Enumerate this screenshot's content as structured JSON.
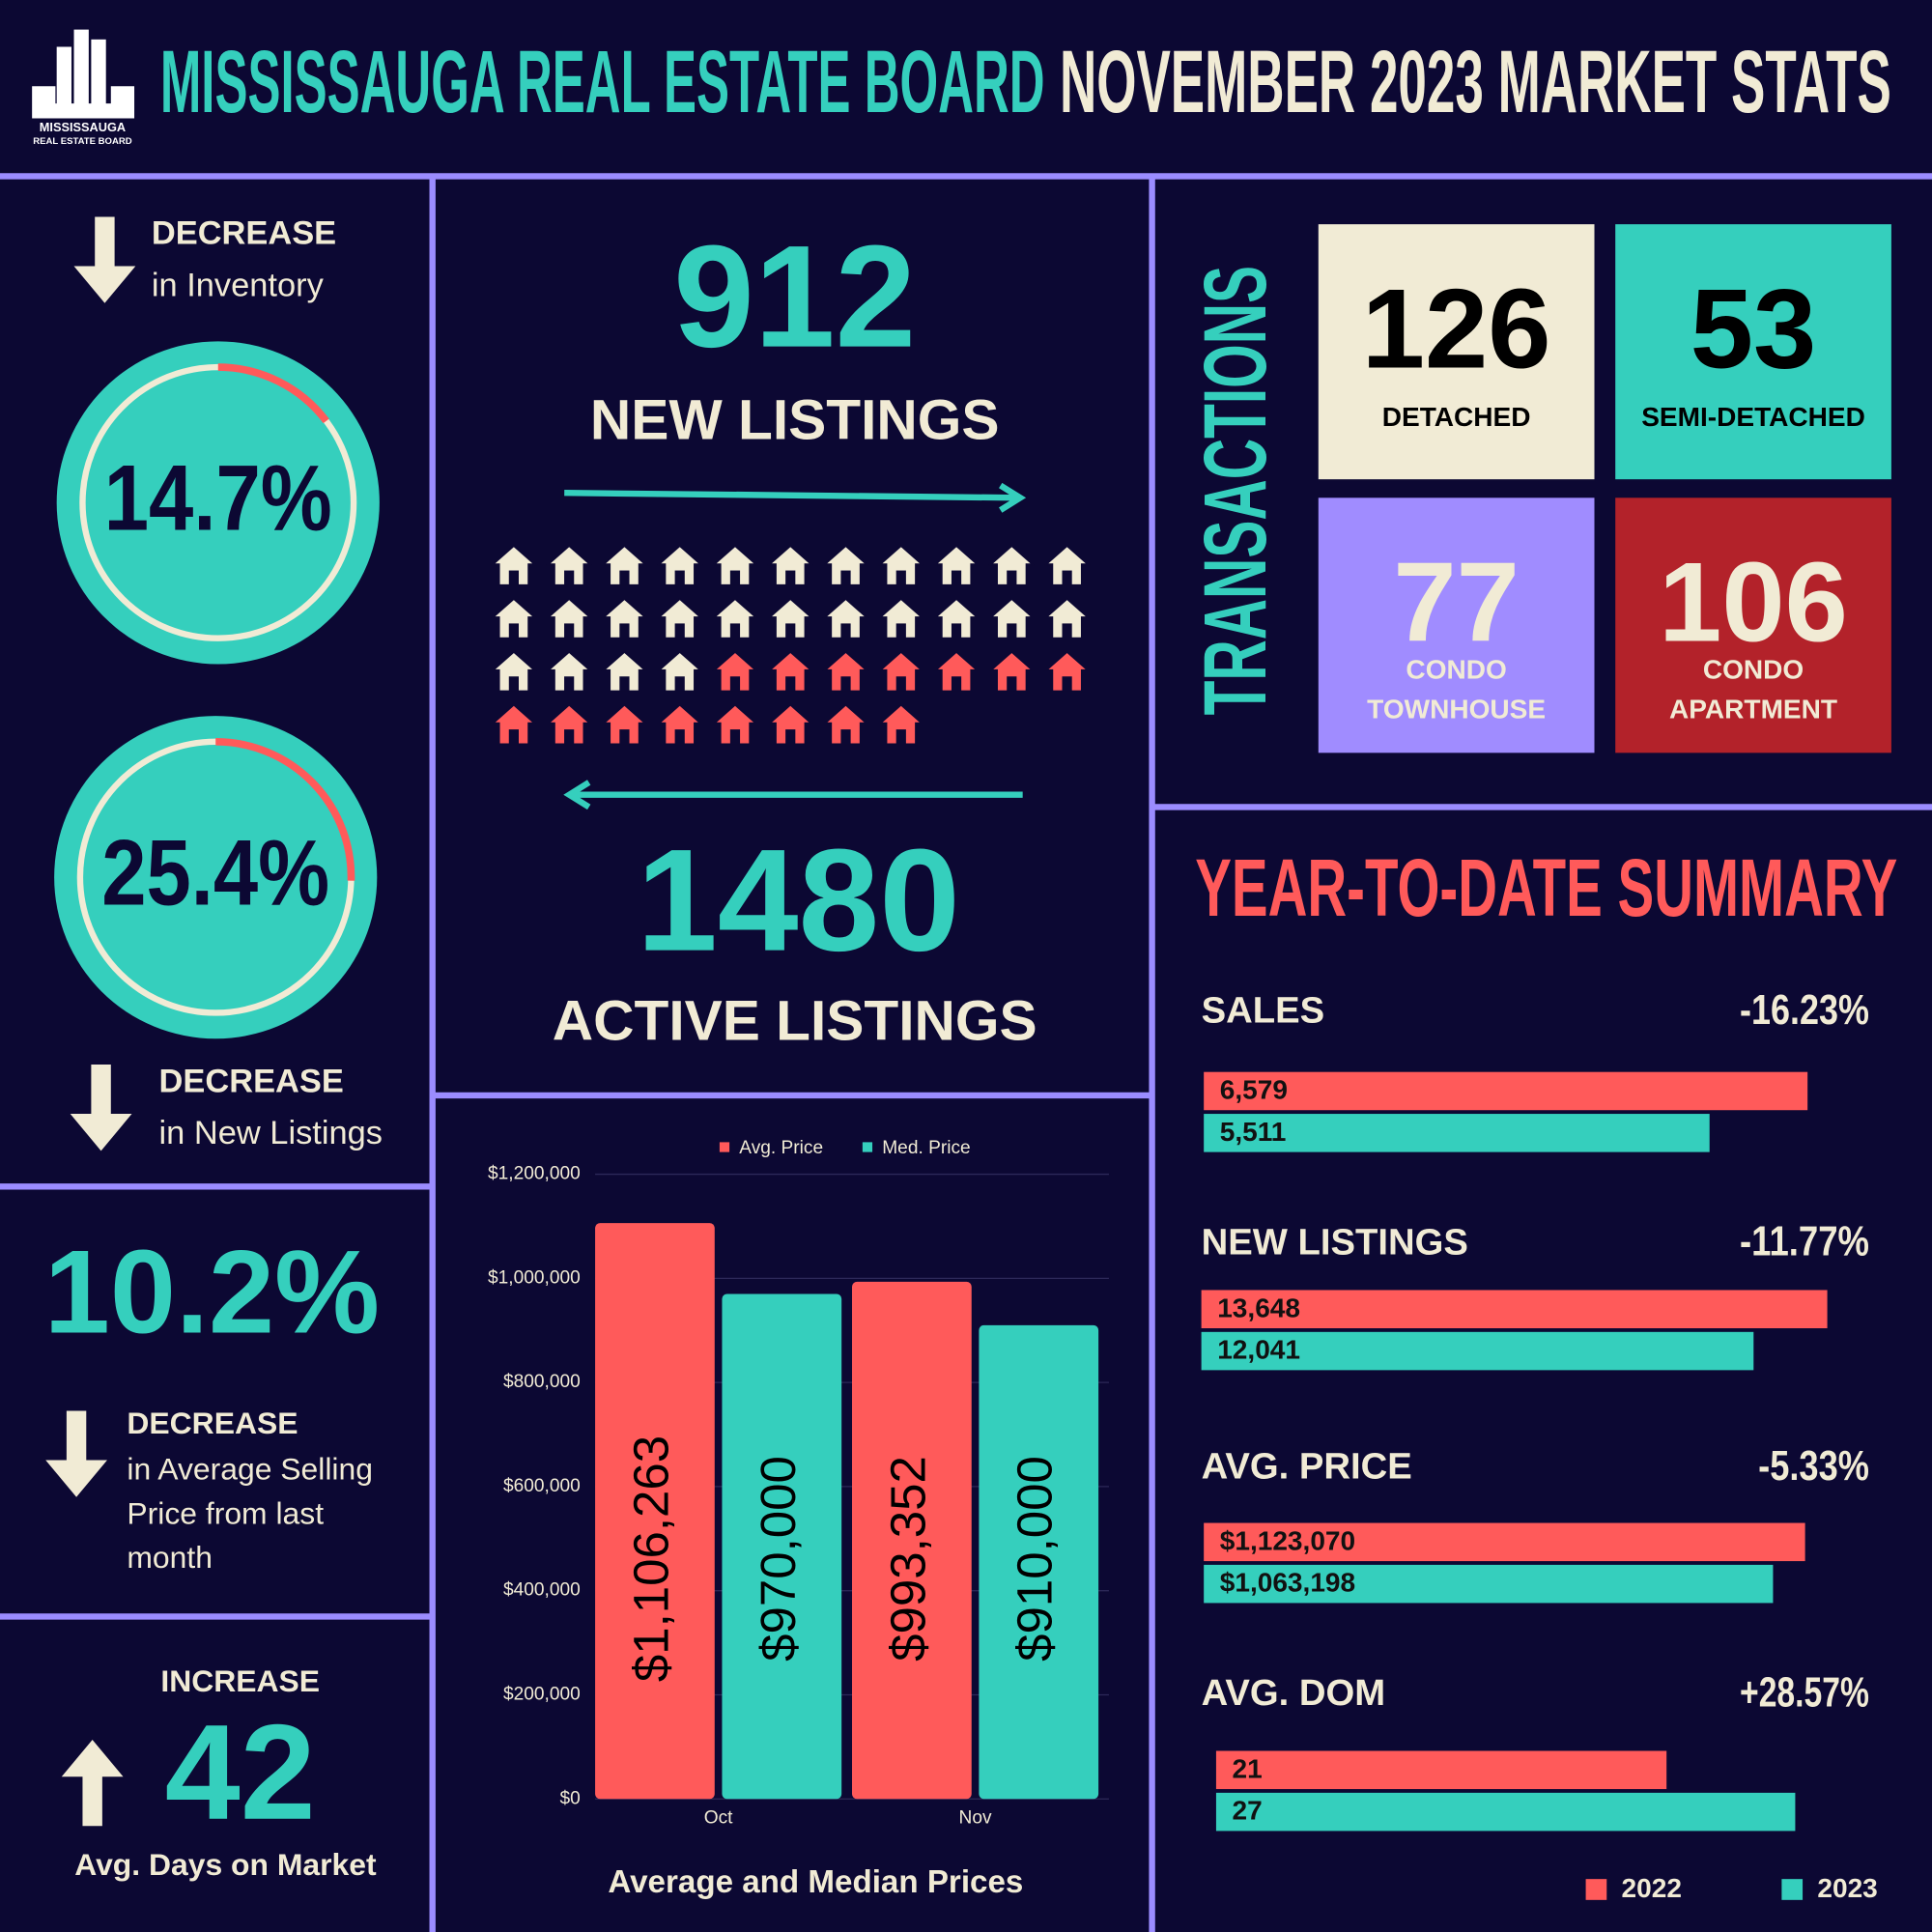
{
  "header": {
    "logo_line1": "MISSISSAUGA",
    "logo_line2": "REAL ESTATE BOARD",
    "title_board": "MISSISSAUGA REAL ESTATE BOARD",
    "title_period": "NOVEMBER 2023 MARKET STATS"
  },
  "inventory": {
    "direction": "DECREASE",
    "caption": "in Inventory",
    "change": {
      "value": 14.7,
      "label": "14.7%"
    }
  },
  "new_listings_change": {
    "direction": "DECREASE",
    "caption": "in New Listings",
    "change": {
      "value": 25.4,
      "label": "25.4%"
    }
  },
  "avg_price_change": {
    "value": "10.2%",
    "direction": "DECREASE",
    "caption_lines": [
      "in Average Selling",
      "Price from last",
      "month"
    ]
  },
  "days_on_market": {
    "direction": "INCREASE",
    "value": 42,
    "caption": "Avg. Days on Market"
  },
  "listings": {
    "new_value": 912,
    "new_label": "NEW LISTINGS",
    "active_value": 1480,
    "active_label": "ACTIVE LISTINGS"
  },
  "transactions": {
    "title": "TRANSACTIONS",
    "tiles": [
      {
        "value": 126,
        "label_lines": [
          "DETACHED"
        ],
        "color": "#f1ebd5"
      },
      {
        "value": 53,
        "label_lines": [
          "SEMI-DETACHED"
        ],
        "color": "#35cfbd"
      },
      {
        "value": 77,
        "label_lines": [
          "CONDO",
          "TOWNHOUSE"
        ],
        "color": "#a08cff"
      },
      {
        "value": 106,
        "label_lines": [
          "CONDO",
          "APARTMENT"
        ],
        "color": "#b3222a"
      }
    ]
  },
  "ytd": {
    "title": "YEAR-TO-DATE SUMMARY",
    "legend": [
      {
        "name": "2022",
        "color": "#ff5a5a"
      },
      {
        "name": "2023",
        "color": "#35cfbd"
      }
    ],
    "metrics": [
      {
        "name": "SALES",
        "change": "-16.23%",
        "values": [
          6579,
          5511
        ],
        "value_labels": [
          "6,579",
          "5,511"
        ]
      },
      {
        "name": "NEW LISTINGS",
        "change": "-11.77%",
        "values": [
          13648,
          12041
        ],
        "value_labels": [
          "13,648",
          "12,041"
        ]
      },
      {
        "name": "AVG. PRICE",
        "change": "-5.33%",
        "values": [
          1123070,
          1063198
        ],
        "value_labels": [
          "$1,123,070",
          "$1,063,198"
        ]
      },
      {
        "name": "AVG. DOM",
        "change": "+28.57%",
        "values": [
          21,
          27
        ]
      }
    ]
  },
  "chart_data": {
    "type": "bar",
    "title": "Average and Median Prices",
    "categories": [
      "Oct",
      "Nov"
    ],
    "series": [
      {
        "name": "Avg. Price",
        "color": "#ff5a5a",
        "values": [
          1106263,
          993352
        ],
        "value_labels": [
          "$1,106,263",
          "$993,352"
        ]
      },
      {
        "name": "Med. Price",
        "color": "#35cfbd",
        "values": [
          970000,
          910000
        ],
        "value_labels": [
          "$970,000",
          "$910,000"
        ]
      }
    ],
    "ylim": [
      0,
      1200000
    ],
    "yticks": [
      {
        "value": 0,
        "label": "$0"
      },
      {
        "value": 200000,
        "label": "$200,000"
      },
      {
        "value": 400000,
        "label": "$400,000"
      },
      {
        "value": 600000,
        "label": "$600,000"
      },
      {
        "value": 800000,
        "label": "$800,000"
      },
      {
        "value": 1000000,
        "label": "$1,000,000"
      },
      {
        "value": 1200000,
        "label": "$1,200,000"
      }
    ],
    "grid": true
  }
}
